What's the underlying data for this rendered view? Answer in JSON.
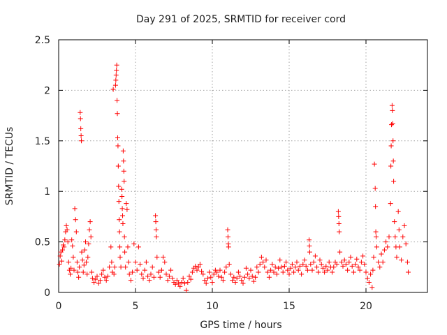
{
  "chart_data": {
    "type": "scatter",
    "title": "Day 291 of 2025, SRMTID for receiver cord",
    "xlabel": "GPS time / hours",
    "ylabel": "SRMTID / TECUs",
    "xlim": [
      0,
      24
    ],
    "ylim": [
      0,
      2.5
    ],
    "xticks": [
      0,
      5,
      10,
      15,
      20
    ],
    "xtick_labels": [
      "0",
      "5",
      "10",
      "15",
      "20"
    ],
    "yticks": [
      0,
      0.5,
      1,
      1.5,
      2,
      2.5
    ],
    "ytick_labels": [
      "0",
      "0.5",
      "1",
      "1.5",
      "2",
      "2.5"
    ],
    "grid": true,
    "marker": "+",
    "color": "#ff0000",
    "series": [
      {
        "name": "SRMTID",
        "points": [
          [
            0.05,
            0.28
          ],
          [
            0.1,
            0.36
          ],
          [
            0.15,
            0.4
          ],
          [
            0.2,
            0.31
          ],
          [
            0.25,
            0.42
          ],
          [
            0.3,
            0.47
          ],
          [
            0.35,
            0.45
          ],
          [
            0.4,
            0.52
          ],
          [
            0.45,
            0.6
          ],
          [
            0.5,
            0.66
          ],
          [
            0.55,
            0.62
          ],
          [
            0.6,
            0.5
          ],
          [
            0.65,
            0.3
          ],
          [
            0.7,
            0.22
          ],
          [
            0.75,
            0.18
          ],
          [
            0.8,
            0.24
          ],
          [
            0.85,
            0.52
          ],
          [
            0.9,
            0.46
          ],
          [
            0.95,
            0.35
          ],
          [
            1.0,
            0.22
          ],
          [
            1.05,
            0.83
          ],
          [
            1.1,
            0.72
          ],
          [
            1.15,
            0.6
          ],
          [
            1.2,
            0.3
          ],
          [
            1.25,
            0.2
          ],
          [
            1.3,
            0.15
          ],
          [
            1.35,
            0.25
          ],
          [
            1.4,
            1.78
          ],
          [
            1.42,
            1.72
          ],
          [
            1.44,
            1.62
          ],
          [
            1.46,
            1.55
          ],
          [
            1.48,
            1.5
          ],
          [
            1.5,
            0.4
          ],
          [
            1.55,
            0.32
          ],
          [
            1.6,
            0.2
          ],
          [
            1.65,
            0.27
          ],
          [
            1.7,
            0.42
          ],
          [
            1.75,
            0.5
          ],
          [
            1.8,
            0.3
          ],
          [
            1.85,
            0.18
          ],
          [
            1.9,
            0.35
          ],
          [
            1.95,
            0.48
          ],
          [
            2.0,
            0.62
          ],
          [
            2.05,
            0.7
          ],
          [
            2.1,
            0.55
          ],
          [
            2.15,
            0.2
          ],
          [
            2.2,
            0.14
          ],
          [
            2.3,
            0.1
          ],
          [
            2.4,
            0.13
          ],
          [
            2.5,
            0.16
          ],
          [
            2.6,
            0.09
          ],
          [
            2.7,
            0.12
          ],
          [
            2.8,
            0.18
          ],
          [
            2.9,
            0.22
          ],
          [
            3.0,
            0.15
          ],
          [
            3.1,
            0.12
          ],
          [
            3.2,
            0.16
          ],
          [
            3.3,
            0.25
          ],
          [
            3.4,
            0.45
          ],
          [
            3.45,
            0.3
          ],
          [
            3.5,
            0.2
          ],
          [
            3.55,
            2.01
          ],
          [
            3.6,
            0.18
          ],
          [
            3.65,
            0.25
          ],
          [
            3.7,
            2.05
          ],
          [
            3.72,
            2.1
          ],
          [
            3.74,
            2.15
          ],
          [
            3.76,
            2.2
          ],
          [
            3.78,
            2.25
          ],
          [
            3.8,
            1.9
          ],
          [
            3.82,
            1.77
          ],
          [
            3.84,
            1.53
          ],
          [
            3.86,
            1.45
          ],
          [
            3.88,
            1.25
          ],
          [
            3.9,
            1.05
          ],
          [
            3.92,
            0.9
          ],
          [
            3.94,
            0.72
          ],
          [
            3.96,
            0.6
          ],
          [
            3.98,
            0.45
          ],
          [
            4.0,
            0.35
          ],
          [
            4.05,
            0.25
          ],
          [
            4.1,
            1.02
          ],
          [
            4.12,
            0.95
          ],
          [
            4.14,
            0.83
          ],
          [
            4.16,
            0.76
          ],
          [
            4.18,
            0.68
          ],
          [
            4.2,
            1.4
          ],
          [
            4.22,
            1.3
          ],
          [
            4.24,
            1.2
          ],
          [
            4.26,
            1.1
          ],
          [
            4.28,
            0.55
          ],
          [
            4.3,
            0.4
          ],
          [
            4.35,
            0.25
          ],
          [
            4.4,
            0.88
          ],
          [
            4.45,
            0.82
          ],
          [
            4.5,
            0.45
          ],
          [
            4.55,
            0.3
          ],
          [
            4.6,
            0.18
          ],
          [
            4.7,
            0.12
          ],
          [
            4.8,
            0.2
          ],
          [
            4.9,
            0.48
          ],
          [
            5.0,
            0.3
          ],
          [
            5.1,
            0.22
          ],
          [
            5.2,
            0.45
          ],
          [
            5.3,
            0.28
          ],
          [
            5.4,
            0.18
          ],
          [
            5.5,
            0.14
          ],
          [
            5.6,
            0.22
          ],
          [
            5.7,
            0.3
          ],
          [
            5.8,
            0.16
          ],
          [
            5.9,
            0.12
          ],
          [
            6.0,
            0.18
          ],
          [
            6.1,
            0.25
          ],
          [
            6.2,
            0.15
          ],
          [
            6.3,
            0.76
          ],
          [
            6.32,
            0.7
          ],
          [
            6.34,
            0.62
          ],
          [
            6.36,
            0.55
          ],
          [
            6.4,
            0.35
          ],
          [
            6.5,
            0.2
          ],
          [
            6.6,
            0.15
          ],
          [
            6.7,
            0.22
          ],
          [
            6.8,
            0.35
          ],
          [
            6.9,
            0.3
          ],
          [
            7.0,
            0.18
          ],
          [
            7.1,
            0.12
          ],
          [
            7.2,
            0.16
          ],
          [
            7.3,
            0.22
          ],
          [
            7.4,
            0.14
          ],
          [
            7.5,
            0.1
          ],
          [
            7.6,
            0.08
          ],
          [
            7.7,
            0.12
          ],
          [
            7.8,
            0.09
          ],
          [
            7.9,
            0.06
          ],
          [
            8.0,
            0.1
          ],
          [
            8.1,
            0.14
          ],
          [
            8.2,
            0.09
          ],
          [
            8.3,
            0.02
          ],
          [
            8.4,
            0.1
          ],
          [
            8.5,
            0.16
          ],
          [
            8.6,
            0.13
          ],
          [
            8.7,
            0.2
          ],
          [
            8.8,
            0.24
          ],
          [
            8.9,
            0.26
          ],
          [
            9.0,
            0.22
          ],
          [
            9.1,
            0.25
          ],
          [
            9.2,
            0.28
          ],
          [
            9.3,
            0.21
          ],
          [
            9.4,
            0.18
          ],
          [
            9.5,
            0.12
          ],
          [
            9.6,
            0.09
          ],
          [
            9.7,
            0.14
          ],
          [
            9.8,
            0.2
          ],
          [
            9.9,
            0.15
          ],
          [
            10.0,
            0.1
          ],
          [
            10.1,
            0.18
          ],
          [
            10.2,
            0.22
          ],
          [
            10.3,
            0.2
          ],
          [
            10.4,
            0.16
          ],
          [
            10.5,
            0.22
          ],
          [
            10.6,
            0.15
          ],
          [
            10.7,
            0.12
          ],
          [
            10.8,
            0.2
          ],
          [
            10.9,
            0.25
          ],
          [
            11.0,
            0.62
          ],
          [
            11.02,
            0.55
          ],
          [
            11.04,
            0.48
          ],
          [
            11.06,
            0.45
          ],
          [
            11.1,
            0.28
          ],
          [
            11.2,
            0.18
          ],
          [
            11.3,
            0.12
          ],
          [
            11.4,
            0.15
          ],
          [
            11.5,
            0.1
          ],
          [
            11.6,
            0.14
          ],
          [
            11.7,
            0.2
          ],
          [
            11.8,
            0.16
          ],
          [
            11.9,
            0.12
          ],
          [
            12.0,
            0.09
          ],
          [
            12.1,
            0.15
          ],
          [
            12.2,
            0.24
          ],
          [
            12.3,
            0.18
          ],
          [
            12.4,
            0.14
          ],
          [
            12.5,
            0.22
          ],
          [
            12.6,
            0.16
          ],
          [
            12.7,
            0.11
          ],
          [
            12.8,
            0.15
          ],
          [
            12.9,
            0.25
          ],
          [
            13.0,
            0.2
          ],
          [
            13.1,
            0.28
          ],
          [
            13.2,
            0.35
          ],
          [
            13.3,
            0.3
          ],
          [
            13.4,
            0.25
          ],
          [
            13.5,
            0.32
          ],
          [
            13.6,
            0.2
          ],
          [
            13.7,
            0.15
          ],
          [
            13.8,
            0.22
          ],
          [
            13.9,
            0.28
          ],
          [
            14.0,
            0.2
          ],
          [
            14.1,
            0.25
          ],
          [
            14.2,
            0.18
          ],
          [
            14.3,
            0.24
          ],
          [
            14.4,
            0.32
          ],
          [
            14.5,
            0.25
          ],
          [
            14.6,
            0.2
          ],
          [
            14.7,
            0.26
          ],
          [
            14.8,
            0.3
          ],
          [
            14.9,
            0.22
          ],
          [
            15.0,
            0.18
          ],
          [
            15.1,
            0.24
          ],
          [
            15.2,
            0.28
          ],
          [
            15.3,
            0.2
          ],
          [
            15.4,
            0.25
          ],
          [
            15.5,
            0.3
          ],
          [
            15.6,
            0.22
          ],
          [
            15.7,
            0.26
          ],
          [
            15.8,
            0.18
          ],
          [
            15.9,
            0.28
          ],
          [
            16.0,
            0.32
          ],
          [
            16.1,
            0.26
          ],
          [
            16.2,
            0.22
          ],
          [
            16.3,
            0.52
          ],
          [
            16.32,
            0.46
          ],
          [
            16.34,
            0.4
          ],
          [
            16.4,
            0.28
          ],
          [
            16.5,
            0.22
          ],
          [
            16.6,
            0.3
          ],
          [
            16.7,
            0.36
          ],
          [
            16.8,
            0.25
          ],
          [
            16.9,
            0.2
          ],
          [
            17.0,
            0.32
          ],
          [
            17.1,
            0.28
          ],
          [
            17.2,
            0.24
          ],
          [
            17.3,
            0.2
          ],
          [
            17.4,
            0.26
          ],
          [
            17.5,
            0.22
          ],
          [
            17.6,
            0.3
          ],
          [
            17.7,
            0.25
          ],
          [
            17.8,
            0.2
          ],
          [
            17.9,
            0.25
          ],
          [
            18.0,
            0.3
          ],
          [
            18.1,
            0.28
          ],
          [
            18.2,
            0.8
          ],
          [
            18.22,
            0.75
          ],
          [
            18.24,
            0.68
          ],
          [
            18.26,
            0.6
          ],
          [
            18.3,
            0.4
          ],
          [
            18.4,
            0.3
          ],
          [
            18.5,
            0.26
          ],
          [
            18.6,
            0.32
          ],
          [
            18.7,
            0.28
          ],
          [
            18.8,
            0.22
          ],
          [
            18.9,
            0.3
          ],
          [
            19.0,
            0.35
          ],
          [
            19.1,
            0.26
          ],
          [
            19.2,
            0.2
          ],
          [
            19.3,
            0.28
          ],
          [
            19.4,
            0.33
          ],
          [
            19.5,
            0.25
          ],
          [
            19.6,
            0.22
          ],
          [
            19.7,
            0.3
          ],
          [
            19.8,
            0.36
          ],
          [
            19.9,
            0.28
          ],
          [
            20.0,
            0.2
          ],
          [
            20.1,
            0.14
          ],
          [
            20.2,
            0.1
          ],
          [
            20.3,
            0.18
          ],
          [
            20.4,
            0.05
          ],
          [
            20.45,
            0.22
          ],
          [
            20.5,
            0.35
          ],
          [
            20.55,
            1.27
          ],
          [
            20.6,
            1.03
          ],
          [
            20.62,
            0.85
          ],
          [
            20.64,
            0.6
          ],
          [
            20.66,
            0.55
          ],
          [
            20.7,
            0.45
          ],
          [
            20.8,
            0.3
          ],
          [
            20.9,
            0.25
          ],
          [
            21.0,
            0.38
          ],
          [
            21.1,
            0.3
          ],
          [
            21.2,
            0.42
          ],
          [
            21.3,
            0.5
          ],
          [
            21.4,
            0.45
          ],
          [
            21.5,
            0.55
          ],
          [
            21.6,
            0.88
          ],
          [
            21.62,
            1.25
          ],
          [
            21.64,
            1.45
          ],
          [
            21.66,
            1.66
          ],
          [
            21.7,
            1.85
          ],
          [
            21.72,
            1.8
          ],
          [
            21.74,
            1.67
          ],
          [
            21.76,
            1.5
          ],
          [
            21.78,
            1.3
          ],
          [
            21.8,
            1.1
          ],
          [
            21.85,
            0.7
          ],
          [
            21.9,
            0.55
          ],
          [
            21.95,
            0.45
          ],
          [
            22.0,
            0.35
          ],
          [
            22.1,
            0.8
          ],
          [
            22.15,
            0.62
          ],
          [
            22.2,
            0.45
          ],
          [
            22.3,
            0.32
          ],
          [
            22.4,
            0.55
          ],
          [
            22.5,
            0.66
          ],
          [
            22.6,
            0.48
          ],
          [
            22.7,
            0.3
          ],
          [
            22.75,
            0.2
          ]
        ]
      }
    ]
  }
}
